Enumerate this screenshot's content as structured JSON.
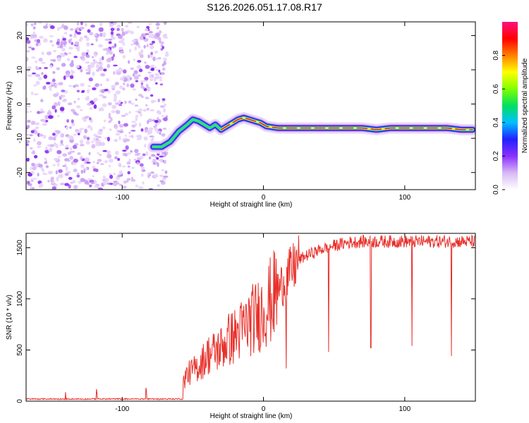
{
  "title": "S126.2026.051.17.08.R17",
  "chart_data": [
    {
      "type": "heatmap",
      "title": "S126.2026.051.17.08.R17",
      "xlabel": "Height of straight line (km)",
      "ylabel": "Frequency (Hz)",
      "xlim": [
        -168,
        150
      ],
      "ylim": [
        -25,
        24
      ],
      "xticks": [
        -100,
        0,
        100
      ],
      "yticks": [
        -20,
        -10,
        0,
        10,
        20
      ],
      "colorbar": {
        "label": "Normalized spectral amplitude",
        "range": [
          0,
          1
        ],
        "ticks": [
          "0.0",
          "0.2",
          "0.4",
          "0.6",
          "0.8"
        ],
        "colors": [
          "#ffffff",
          "#d8b8f4",
          "#8a30ff",
          "#2020ff",
          "#00c0ff",
          "#00e060",
          "#80ff00",
          "#ffff00",
          "#ff8000",
          "#ff0000",
          "#ff1080"
        ]
      },
      "noise_region_x_range": [
        -168,
        -68
      ],
      "ridge": {
        "x": [
          -78,
          -72,
          -66,
          -60,
          -54,
          -50,
          -46,
          -42,
          -38,
          -34,
          -30,
          -26,
          -22,
          -18,
          -14,
          -10,
          -6,
          -2,
          2,
          10,
          20,
          40,
          60,
          70,
          80,
          90,
          100,
          110,
          120,
          130,
          140,
          148
        ],
        "freq": [
          -12.5,
          -12.5,
          -11,
          -8,
          -6,
          -4.5,
          -5,
          -6,
          -7,
          -6,
          -7.5,
          -6.5,
          -5.5,
          -4.5,
          -4,
          -4.5,
          -5,
          -5.5,
          -6.5,
          -7,
          -7,
          -7,
          -7,
          -7,
          -7.5,
          -7,
          -7,
          -7,
          -7,
          -7,
          -7.5,
          -7.5
        ]
      }
    },
    {
      "type": "line",
      "xlabel": "Height of straight line (km)",
      "ylabel": "SNR (10 * v/v)",
      "xlim": [
        -168,
        150
      ],
      "ylim": [
        0,
        1640
      ],
      "xticks": [
        -100,
        0,
        100
      ],
      "yticks": [
        0,
        500,
        1000,
        1500
      ],
      "series": [
        {
          "name": "SNR",
          "color": "#e8302a",
          "x": [
            -168,
            -80,
            -70,
            -60,
            -55,
            -50,
            -45,
            -40,
            -35,
            -30,
            -25,
            -20,
            -15,
            -10,
            -5,
            0,
            5,
            10,
            15,
            20,
            25,
            30,
            40,
            50,
            60,
            70,
            80,
            90,
            100,
            110,
            120,
            130,
            140,
            150
          ],
          "y": [
            15,
            20,
            25,
            40,
            250,
            300,
            350,
            450,
            480,
            520,
            600,
            640,
            700,
            780,
            820,
            900,
            980,
            1080,
            1180,
            1280,
            1380,
            1420,
            1480,
            1520,
            1550,
            1560,
            1560,
            1560,
            1560,
            1560,
            1560,
            1560,
            1560,
            1560
          ]
        }
      ],
      "dips": [
        {
          "x": 16,
          "y": 320
        },
        {
          "x": 46,
          "y": 480
        },
        {
          "x": 76,
          "y": 520
        },
        {
          "x": 105,
          "y": 540
        },
        {
          "x": 133,
          "y": 440
        }
      ]
    }
  ]
}
